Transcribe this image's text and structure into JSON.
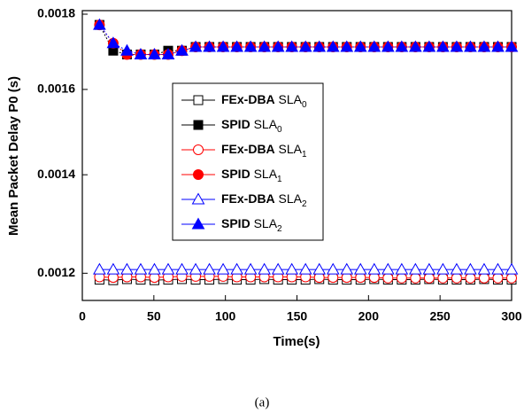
{
  "chart_data": {
    "type": "line",
    "caption": "(a)",
    "x_label": "Time(s)",
    "y_label": "Mean Packet Delay P0 (s)",
    "x": [
      12,
      21.6,
      31.2,
      40.8,
      50.4,
      60,
      69.6,
      79.2,
      88.8,
      98.4,
      108,
      117.6,
      127.2,
      136.8,
      146.4,
      156,
      165.6,
      175.2,
      184.8,
      194.4,
      204,
      213.6,
      223.2,
      232.8,
      242.4,
      252,
      261.6,
      271.2,
      280.8,
      290.4,
      300
    ],
    "xlim": [
      0,
      300
    ],
    "xticks": [
      0,
      50,
      100,
      150,
      200,
      250,
      300
    ],
    "ylim": [
      0.00115,
      0.00181
    ],
    "yticks": [
      0.0012,
      0.0014,
      0.0016,
      0.0018
    ],
    "log_y": true,
    "series": [
      {
        "name": "FEx-DBA SLA0",
        "color": "#000000",
        "marker": "square",
        "filled": false,
        "values": [
          0.001188,
          0.001187,
          0.001189,
          0.001188,
          0.001187,
          0.001188,
          0.001189,
          0.001188,
          0.001188,
          0.001189,
          0.001188,
          0.001188,
          0.001189,
          0.001188,
          0.001188,
          0.001188,
          0.001189,
          0.001188,
          0.001188,
          0.001188,
          0.001189,
          0.001188,
          0.001188,
          0.001188,
          0.001189,
          0.001188,
          0.001188,
          0.001188,
          0.001189,
          0.001188,
          0.001188
        ]
      },
      {
        "name": "SPID SLA0",
        "color": "#000000",
        "marker": "square",
        "filled": true,
        "values": [
          0.00177,
          0.0017,
          0.00169,
          0.00169,
          0.00169,
          0.0017,
          0.0017,
          0.00171,
          0.00171,
          0.00171,
          0.00171,
          0.00171,
          0.00171,
          0.00171,
          0.00171,
          0.00171,
          0.00171,
          0.00171,
          0.00171,
          0.00171,
          0.00171,
          0.00171,
          0.00171,
          0.00171,
          0.00171,
          0.00171,
          0.00171,
          0.00171,
          0.00171,
          0.00171,
          0.00171
        ]
      },
      {
        "name": "FEx-DBA SLA1",
        "color": "#ff0000",
        "marker": "circle",
        "filled": false,
        "values": [
          0.001193,
          0.001192,
          0.001193,
          0.001193,
          0.001192,
          0.001193,
          0.001194,
          0.001194,
          0.001194,
          0.001194,
          0.001193,
          0.001193,
          0.001193,
          0.001193,
          0.001193,
          0.001193,
          0.001192,
          0.001192,
          0.001192,
          0.001192,
          0.001192,
          0.001191,
          0.001191,
          0.001191,
          0.001191,
          0.001191,
          0.001191,
          0.001191,
          0.001191,
          0.001191,
          0.001191
        ]
      },
      {
        "name": "SPID SLA1",
        "color": "#ff0000",
        "marker": "circle",
        "filled": true,
        "values": [
          0.00177,
          0.00172,
          0.00169,
          0.00169,
          0.00169,
          0.00169,
          0.0017,
          0.00171,
          0.00171,
          0.00171,
          0.00171,
          0.00171,
          0.00171,
          0.00171,
          0.00171,
          0.00171,
          0.00171,
          0.00171,
          0.00171,
          0.00171,
          0.00171,
          0.00171,
          0.00171,
          0.00171,
          0.00171,
          0.00171,
          0.00171,
          0.00171,
          0.00171,
          0.00171,
          0.00171
        ]
      },
      {
        "name": "FEx-DBA SLA2",
        "color": "#0000ff",
        "marker": "triangle",
        "filled": false,
        "values": [
          0.001207,
          0.001207,
          0.001207,
          0.001207,
          0.001207,
          0.001207,
          0.001207,
          0.001207,
          0.001207,
          0.001207,
          0.001207,
          0.001207,
          0.001207,
          0.001207,
          0.001207,
          0.001207,
          0.001207,
          0.001207,
          0.001207,
          0.001207,
          0.001207,
          0.001207,
          0.001207,
          0.001207,
          0.001207,
          0.001207,
          0.001207,
          0.001207,
          0.001207,
          0.001207,
          0.001207
        ]
      },
      {
        "name": "SPID SLA2",
        "color": "#0000ff",
        "marker": "triangle",
        "filled": true,
        "values": [
          0.00177,
          0.00172,
          0.0017,
          0.00169,
          0.00169,
          0.00169,
          0.0017,
          0.00171,
          0.00171,
          0.00171,
          0.00171,
          0.00171,
          0.00171,
          0.00171,
          0.00171,
          0.00171,
          0.00171,
          0.00171,
          0.00171,
          0.00171,
          0.00171,
          0.00171,
          0.00171,
          0.00171,
          0.00171,
          0.00171,
          0.00171,
          0.00171,
          0.00171,
          0.00171,
          0.00171
        ]
      }
    ]
  }
}
